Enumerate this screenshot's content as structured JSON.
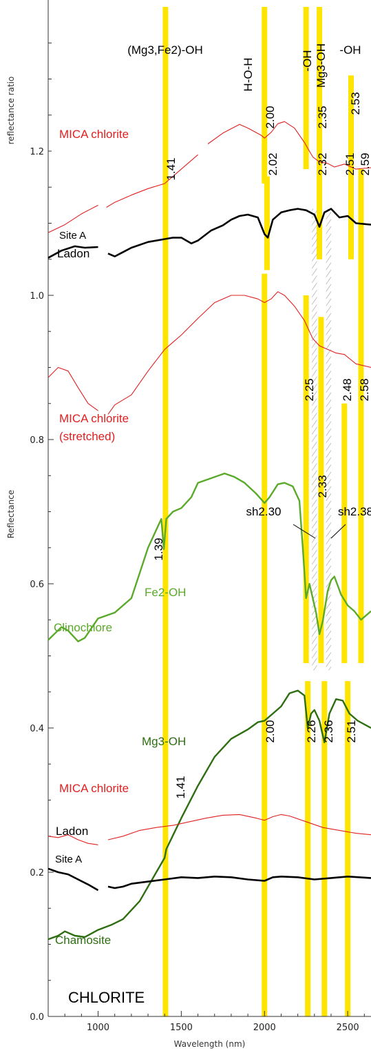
{
  "chart_data": {
    "type": "line",
    "title": "CHLORITE",
    "xlabel": "Wavelength (nm)",
    "ylabel": "Reflectance",
    "ylabel_top": "reflectance ratio",
    "xlim": [
      700,
      2640
    ],
    "ylim": [
      0.0,
      1.4
    ],
    "x_ticks": [
      1000,
      1500,
      2000,
      2500
    ],
    "y_ticks": [
      0.0,
      0.2,
      0.4,
      0.6,
      0.8,
      1.0
    ],
    "y_ticks_ratio": [
      1.0,
      1.2
    ],
    "colors": {
      "mica": "#e02020",
      "site": "#000000",
      "clino": "#5aaa2a",
      "chamo": "#2d6e10",
      "band": "#ffe400",
      "hatch": "#9a9a9a"
    },
    "bands": [
      1405,
      2000,
      2015,
      2250,
      2260,
      2330,
      2340,
      2360,
      2480,
      2500,
      2520,
      2580
    ],
    "hatch_regions": [
      [
        2285,
        2315
      ],
      [
        2370,
        2400
      ]
    ],
    "band_header_labels": [
      "(Mg3,Fe2)-OH",
      "H-O-H",
      "-OH",
      "Mg3-OH",
      "-OH"
    ],
    "band_value_labels": [
      "1.41",
      "2.00",
      "2.02",
      "2.35",
      "2.32",
      "2.53",
      "2.51",
      "2.59",
      "2.25",
      "2.48",
      "2.58",
      "2.33",
      "1.39",
      "2.00",
      "2.26",
      "2.36",
      "2.51",
      "1.41"
    ],
    "annotations": [
      "sh2.30",
      "sh2.38",
      "Fe2-OH",
      "Mg3-OH"
    ],
    "series": [
      {
        "name": "MICA chlorite",
        "color": "mica",
        "width": 1.1,
        "segments": [
          [
            [
              700,
              1.087
            ],
            [
              800,
              1.098
            ],
            [
              900,
              1.113
            ],
            [
              1000,
              1.125
            ]
          ],
          [
            [
              1050,
              1.122
            ],
            [
              1100,
              1.129
            ],
            [
              1200,
              1.139
            ],
            [
              1300,
              1.148
            ],
            [
              1400,
              1.155
            ],
            [
              1500,
              1.175
            ],
            [
              1600,
              1.195
            ]
          ],
          [
            [
              1660,
              1.21
            ],
            [
              1750,
              1.225
            ],
            [
              1850,
              1.237
            ],
            [
              1900,
              1.232
            ],
            [
              1980,
              1.222
            ],
            [
              2000,
              1.218
            ],
            [
              2040,
              1.226
            ],
            [
              2080,
              1.238
            ],
            [
              2120,
              1.241
            ],
            [
              2180,
              1.232
            ],
            [
              2240,
              1.212
            ],
            [
              2290,
              1.192
            ],
            [
              2330,
              1.185
            ],
            [
              2380,
              1.183
            ],
            [
              2420,
              1.178
            ],
            [
              2480,
              1.182
            ],
            [
              2550,
              1.175
            ],
            [
              2640,
              1.177
            ]
          ]
        ]
      },
      {
        "name": "Site A Ladon",
        "color": "site",
        "width": 2.6,
        "segments": [
          [
            [
              700,
              1.052
            ],
            [
              780,
              1.062
            ],
            [
              860,
              1.068
            ],
            [
              920,
              1.066
            ],
            [
              1000,
              1.067
            ]
          ],
          [
            [
              1060,
              1.058
            ],
            [
              1100,
              1.054
            ],
            [
              1150,
              1.06
            ],
            [
              1200,
              1.066
            ],
            [
              1300,
              1.074
            ],
            [
              1400,
              1.078
            ],
            [
              1450,
              1.08
            ],
            [
              1500,
              1.08
            ],
            [
              1560,
              1.072
            ],
            [
              1600,
              1.076
            ],
            [
              1680,
              1.09
            ],
            [
              1750,
              1.097
            ],
            [
              1800,
              1.105
            ],
            [
              1850,
              1.11
            ],
            [
              1900,
              1.112
            ],
            [
              1960,
              1.108
            ],
            [
              2000,
              1.085
            ],
            [
              2020,
              1.08
            ],
            [
              2050,
              1.105
            ],
            [
              2100,
              1.115
            ],
            [
              2150,
              1.118
            ],
            [
              2200,
              1.12
            ],
            [
              2250,
              1.118
            ],
            [
              2300,
              1.112
            ],
            [
              2330,
              1.095
            ],
            [
              2360,
              1.115
            ],
            [
              2400,
              1.12
            ],
            [
              2450,
              1.108
            ],
            [
              2500,
              1.11
            ],
            [
              2550,
              1.1
            ],
            [
              2640,
              1.098
            ]
          ]
        ]
      },
      {
        "name": "MICA chlorite (stretched)",
        "color": "mica",
        "width": 1.1,
        "segments": [
          [
            [
              700,
              0.886
            ],
            [
              760,
              0.9
            ],
            [
              820,
              0.895
            ],
            [
              880,
              0.872
            ],
            [
              940,
              0.85
            ],
            [
              1000,
              0.84
            ]
          ],
          [
            [
              1060,
              0.835
            ],
            [
              1100,
              0.848
            ],
            [
              1200,
              0.862
            ],
            [
              1300,
              0.895
            ],
            [
              1400,
              0.925
            ],
            [
              1500,
              0.945
            ],
            [
              1600,
              0.968
            ],
            [
              1700,
              0.99
            ],
            [
              1800,
              1.0
            ],
            [
              1880,
              1.0
            ],
            [
              1960,
              0.995
            ],
            [
              2000,
              0.99
            ],
            [
              2040,
              0.995
            ],
            [
              2080,
              1.005
            ],
            [
              2120,
              1.0
            ],
            [
              2180,
              0.985
            ],
            [
              2240,
              0.965
            ],
            [
              2290,
              0.94
            ],
            [
              2330,
              0.93
            ],
            [
              2380,
              0.925
            ],
            [
              2430,
              0.92
            ],
            [
              2480,
              0.918
            ],
            [
              2550,
              0.905
            ],
            [
              2640,
              0.9
            ]
          ]
        ]
      },
      {
        "name": "Clinochlore",
        "color": "clino",
        "width": 2.4,
        "segments": [
          [
            [
              700,
              0.522
            ],
            [
              780,
              0.54
            ],
            [
              820,
              0.535
            ],
            [
              880,
              0.52
            ],
            [
              920,
              0.525
            ],
            [
              1000,
              0.552
            ],
            [
              1100,
              0.56
            ],
            [
              1200,
              0.58
            ],
            [
              1300,
              0.65
            ],
            [
              1380,
              0.69
            ],
            [
              1395,
              0.648
            ],
            [
              1410,
              0.69
            ],
            [
              1450,
              0.7
            ],
            [
              1500,
              0.705
            ],
            [
              1560,
              0.72
            ],
            [
              1600,
              0.74
            ],
            [
              1700,
              0.748
            ],
            [
              1760,
              0.753
            ],
            [
              1820,
              0.748
            ],
            [
              1880,
              0.74
            ],
            [
              1950,
              0.725
            ],
            [
              2000,
              0.712
            ],
            [
              2030,
              0.72
            ],
            [
              2080,
              0.738
            ],
            [
              2120,
              0.74
            ],
            [
              2170,
              0.735
            ],
            [
              2210,
              0.715
            ],
            [
              2230,
              0.65
            ],
            [
              2250,
              0.58
            ],
            [
              2270,
              0.6
            ],
            [
              2290,
              0.58
            ],
            [
              2310,
              0.56
            ],
            [
              2330,
              0.53
            ],
            [
              2350,
              0.548
            ],
            [
              2380,
              0.59
            ],
            [
              2400,
              0.605
            ],
            [
              2420,
              0.61
            ],
            [
              2460,
              0.585
            ],
            [
              2500,
              0.57
            ],
            [
              2540,
              0.562
            ],
            [
              2580,
              0.55
            ],
            [
              2640,
              0.562
            ]
          ]
        ]
      },
      {
        "name": "Chamosite",
        "color": "chamo",
        "width": 2.4,
        "segments": [
          [
            [
              700,
              0.107
            ],
            [
              760,
              0.112
            ],
            [
              800,
              0.118
            ],
            [
              860,
              0.112
            ],
            [
              920,
              0.11
            ],
            [
              1000,
              0.12
            ],
            [
              1080,
              0.127
            ],
            [
              1150,
              0.135
            ],
            [
              1250,
              0.16
            ],
            [
              1350,
              0.2
            ],
            [
              1400,
              0.22
            ],
            [
              1410,
              0.232
            ],
            [
              1500,
              0.275
            ],
            [
              1600,
              0.32
            ],
            [
              1700,
              0.36
            ],
            [
              1800,
              0.385
            ],
            [
              1900,
              0.398
            ],
            [
              1960,
              0.408
            ],
            [
              2000,
              0.41
            ],
            [
              2050,
              0.42
            ],
            [
              2100,
              0.43
            ],
            [
              2150,
              0.448
            ],
            [
              2200,
              0.452
            ],
            [
              2240,
              0.445
            ],
            [
              2260,
              0.4
            ],
            [
              2280,
              0.42
            ],
            [
              2300,
              0.425
            ],
            [
              2330,
              0.41
            ],
            [
              2360,
              0.38
            ],
            [
              2390,
              0.42
            ],
            [
              2430,
              0.44
            ],
            [
              2470,
              0.438
            ],
            [
              2510,
              0.42
            ],
            [
              2560,
              0.41
            ],
            [
              2640,
              0.4
            ]
          ]
        ]
      },
      {
        "name": "MICA chlorite",
        "color": "mica",
        "width": 1.1,
        "segments": [
          [
            [
              700,
              0.25
            ],
            [
              760,
              0.248
            ],
            [
              820,
              0.252
            ],
            [
              880,
              0.245
            ],
            [
              940,
              0.24
            ],
            [
              1000,
              0.238
            ]
          ],
          [
            [
              1060,
              0.245
            ],
            [
              1150,
              0.25
            ],
            [
              1250,
              0.258
            ],
            [
              1350,
              0.262
            ],
            [
              1450,
              0.265
            ],
            [
              1550,
              0.27
            ],
            [
              1650,
              0.275
            ],
            [
              1750,
              0.279
            ],
            [
              1850,
              0.28
            ],
            [
              1950,
              0.275
            ],
            [
              2000,
              0.272
            ],
            [
              2050,
              0.277
            ],
            [
              2100,
              0.28
            ],
            [
              2150,
              0.278
            ],
            [
              2250,
              0.27
            ],
            [
              2350,
              0.262
            ],
            [
              2450,
              0.258
            ],
            [
              2550,
              0.254
            ],
            [
              2640,
              0.252
            ]
          ]
        ]
      },
      {
        "name": "Site A Ladon",
        "color": "site",
        "width": 2.6,
        "segments": [
          [
            [
              700,
              0.205
            ],
            [
              760,
              0.2
            ],
            [
              820,
              0.197
            ],
            [
              880,
              0.19
            ],
            [
              940,
              0.183
            ],
            [
              1000,
              0.175
            ]
          ],
          [
            [
              1060,
              0.18
            ],
            [
              1100,
              0.178
            ],
            [
              1150,
              0.18
            ],
            [
              1200,
              0.184
            ],
            [
              1300,
              0.187
            ],
            [
              1400,
              0.19
            ],
            [
              1500,
              0.193
            ],
            [
              1600,
              0.192
            ],
            [
              1700,
              0.194
            ],
            [
              1800,
              0.193
            ],
            [
              1900,
              0.19
            ],
            [
              2000,
              0.188
            ],
            [
              2050,
              0.193
            ],
            [
              2100,
              0.194
            ],
            [
              2200,
              0.193
            ],
            [
              2300,
              0.19
            ],
            [
              2400,
              0.192
            ],
            [
              2500,
              0.194
            ],
            [
              2640,
              0.192
            ]
          ]
        ]
      }
    ],
    "series_labels": [
      "MICA chlorite",
      "Site A",
      "Ladon",
      "MICA chlorite",
      "(stretched)",
      "Clinochlore",
      "MICA chlorite",
      "Ladon",
      "Site A",
      "Chamosite"
    ]
  }
}
